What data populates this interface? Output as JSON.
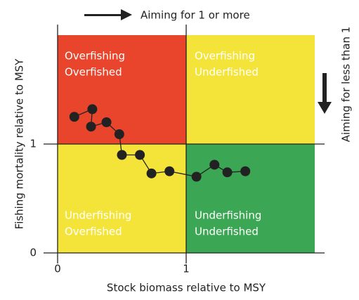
{
  "chart_data": {
    "type": "line",
    "xlabel": "Stock biomass relative to MSY",
    "ylabel": "Fishing mortality relative to MSY",
    "xlim": [
      0,
      2
    ],
    "ylim": [
      0,
      2
    ],
    "xticks": [
      0,
      1
    ],
    "yticks": [
      0,
      1
    ],
    "annotations": [
      "Aiming for 1 or more",
      "Aiming for less than 1"
    ],
    "quadrants": [
      {
        "lines": [
          "Overfishing",
          "Overfished"
        ],
        "color": "#e8452c"
      },
      {
        "lines": [
          "Overfishing",
          "Underfished"
        ],
        "color": "#f4e43a"
      },
      {
        "lines": [
          "Underfishing",
          "Overfished"
        ],
        "color": "#f4e43a"
      },
      {
        "lines": [
          "Underfishing",
          "Underfished"
        ],
        "color": "#3ba653"
      }
    ],
    "series": [
      {
        "color": "#222222",
        "x": [
          0.13,
          0.27,
          0.26,
          0.38,
          0.48,
          0.5,
          0.64,
          0.73,
          0.87,
          1.08,
          1.22,
          1.32,
          1.46
        ],
        "values": [
          1.25,
          1.32,
          1.16,
          1.2,
          1.09,
          0.9,
          0.9,
          0.73,
          0.75,
          0.7,
          0.81,
          0.74,
          0.75
        ]
      }
    ]
  }
}
